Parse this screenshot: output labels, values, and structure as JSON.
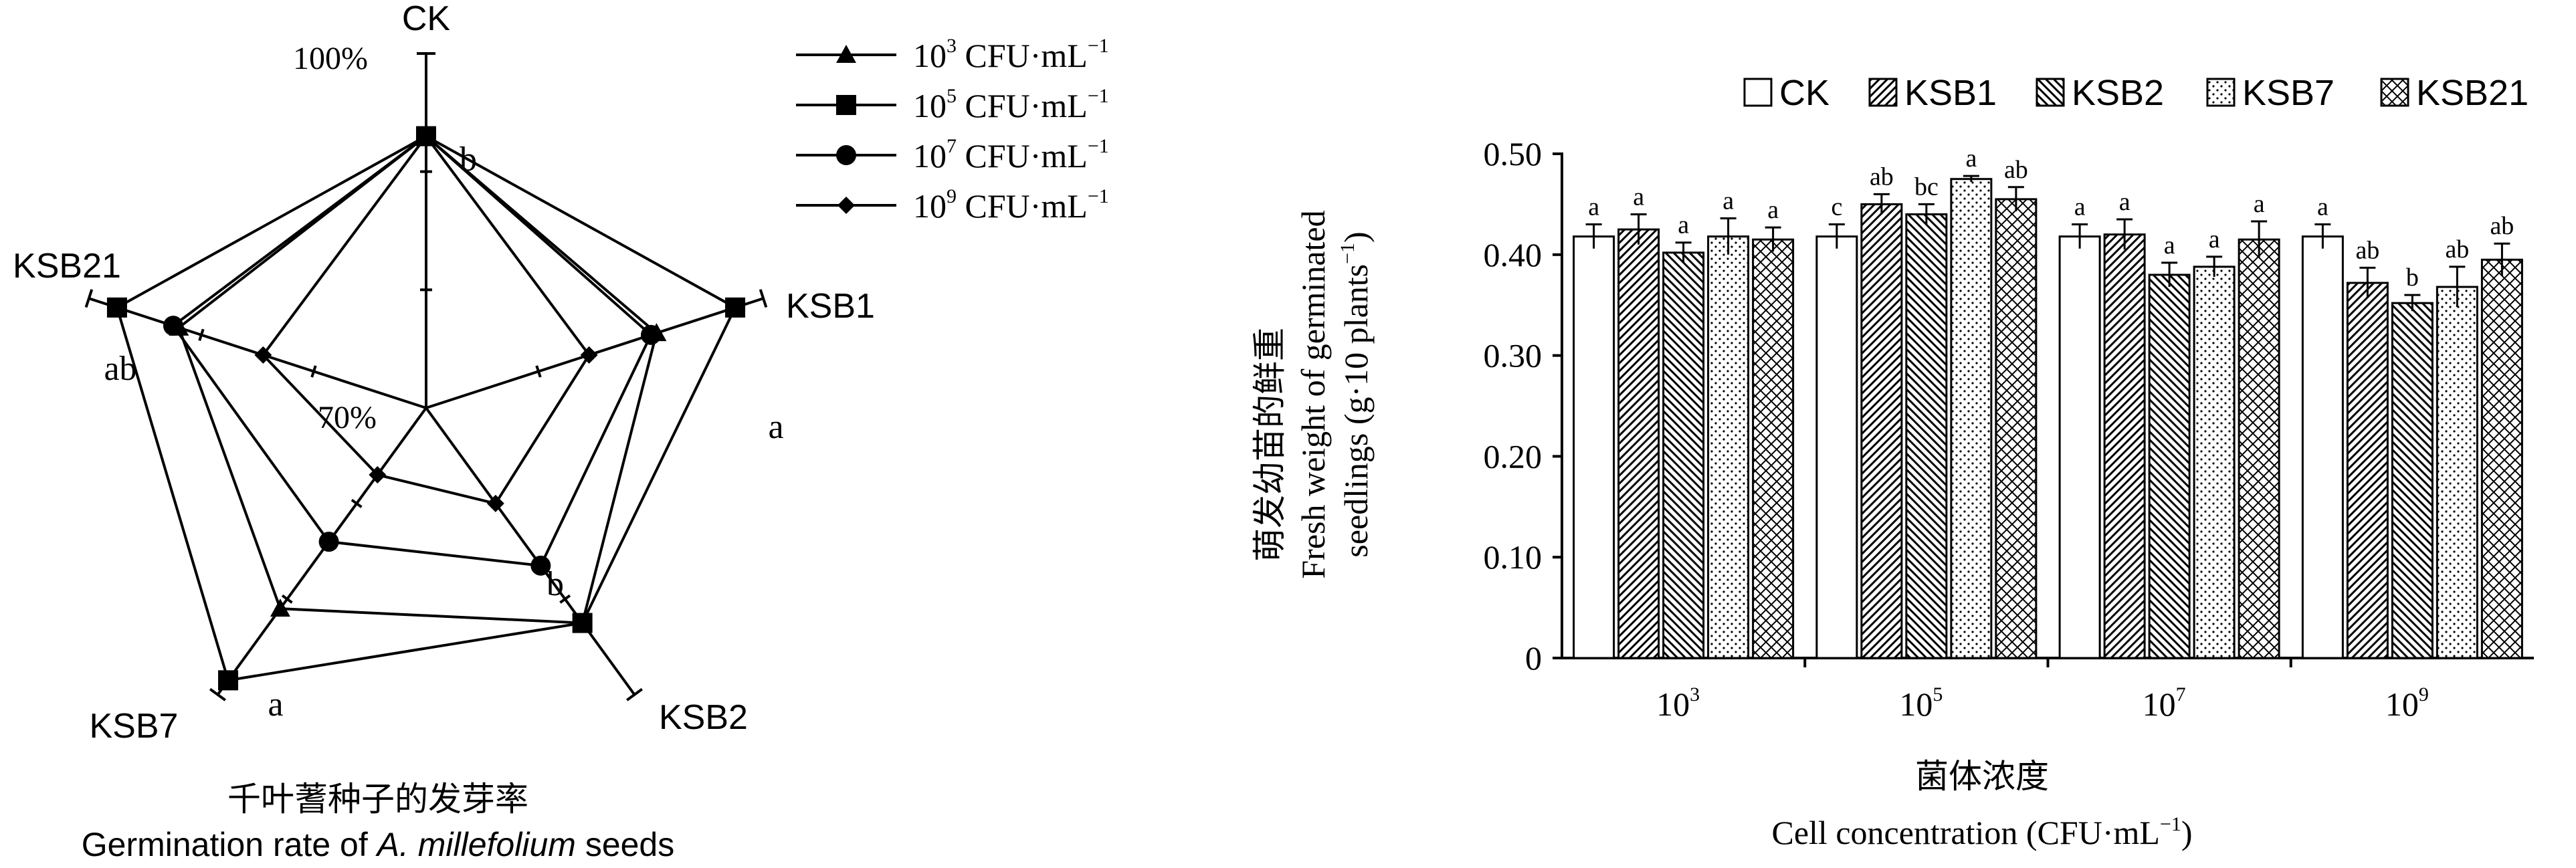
{
  "radar": {
    "type": "radar",
    "axes": [
      "CK",
      "KSB1",
      "KSB2",
      "KSB7",
      "KSB21"
    ],
    "tick_labels": {
      "max": "100%",
      "min": "70%"
    },
    "range": [
      0.7,
      1.0
    ],
    "series": [
      {
        "name": "10",
        "exp": "3",
        "unit": " CFU·mL",
        "unit_exp": "−1",
        "marker": "triangle",
        "values": [
          0.93,
          0.905,
          0.925,
          0.91,
          0.92
        ]
      },
      {
        "name": "10",
        "exp": "5",
        "unit": " CFU·mL",
        "unit_exp": "−1",
        "marker": "square",
        "values": [
          0.93,
          0.975,
          0.925,
          0.985,
          0.975
        ]
      },
      {
        "name": "10",
        "exp": "7",
        "unit": " CFU·mL",
        "unit_exp": "−1",
        "marker": "circle",
        "values": [
          0.93,
          0.9,
          0.865,
          0.84,
          0.925
        ]
      },
      {
        "name": "10",
        "exp": "9",
        "unit": " CFU·mL",
        "unit_exp": "−1",
        "marker": "diamond",
        "values": [
          0.93,
          0.845,
          0.8,
          0.77,
          0.845
        ]
      }
    ],
    "significance": [
      "b",
      "a",
      "b",
      "a",
      "ab"
    ],
    "caption_zh": "千叶蓍种子的发芽率",
    "caption_en_pre": "Germination rate of ",
    "caption_en_italic": "A. millefolium",
    "caption_en_post": " seeds"
  },
  "chart_data": {
    "type": "bar",
    "categories": [
      "10",
      "10",
      "10",
      "10"
    ],
    "category_exps": [
      "3",
      "5",
      "7",
      "9"
    ],
    "series": [
      {
        "name": "CK",
        "pattern": "none",
        "values": [
          0.418,
          0.418,
          0.418,
          0.418
        ],
        "err": [
          0.012,
          0.012,
          0.012,
          0.012
        ],
        "letters": [
          "a",
          "c",
          "a",
          "a"
        ]
      },
      {
        "name": "KSB1",
        "pattern": "diag-right",
        "values": [
          0.425,
          0.45,
          0.42,
          0.372
        ],
        "err": [
          0.015,
          0.01,
          0.015,
          0.015
        ],
        "letters": [
          "a",
          "ab",
          "a",
          "ab"
        ]
      },
      {
        "name": "KSB2",
        "pattern": "diag-left",
        "values": [
          0.402,
          0.44,
          0.38,
          0.352
        ],
        "err": [
          0.01,
          0.01,
          0.012,
          0.008
        ],
        "letters": [
          "a",
          "bc",
          "a",
          "b"
        ]
      },
      {
        "name": "KSB7",
        "pattern": "dots",
        "values": [
          0.418,
          0.475,
          0.388,
          0.368
        ],
        "err": [
          0.018,
          0.003,
          0.01,
          0.02
        ],
        "letters": [
          "a",
          "a",
          "a",
          "ab"
        ]
      },
      {
        "name": "KSB21",
        "pattern": "cross",
        "values": [
          0.415,
          0.455,
          0.415,
          0.395
        ],
        "err": [
          0.012,
          0.012,
          0.018,
          0.016
        ],
        "letters": [
          "a",
          "ab",
          "a",
          "ab"
        ]
      }
    ],
    "ylim": [
      0,
      0.5
    ],
    "yticks": [
      "0",
      "0.10",
      "0.20",
      "0.30",
      "0.40",
      "0.50"
    ],
    "ylabel_zh": "萌发幼苗的鲜重",
    "ylabel_en1": "Fresh weight of germinated",
    "ylabel_en2_pre": "seedlings (g·10 plants",
    "ylabel_en2_exp": "−1",
    "ylabel_en2_post": ")",
    "xlabel_zh": "菌体浓度",
    "xlabel_en_pre": "Cell concentration (CFU·mL",
    "xlabel_en_exp": "−1",
    "xlabel_en_post": ")",
    "legend_position": "top"
  },
  "colors": {
    "ink": "#000000",
    "background": "#ffffff"
  }
}
